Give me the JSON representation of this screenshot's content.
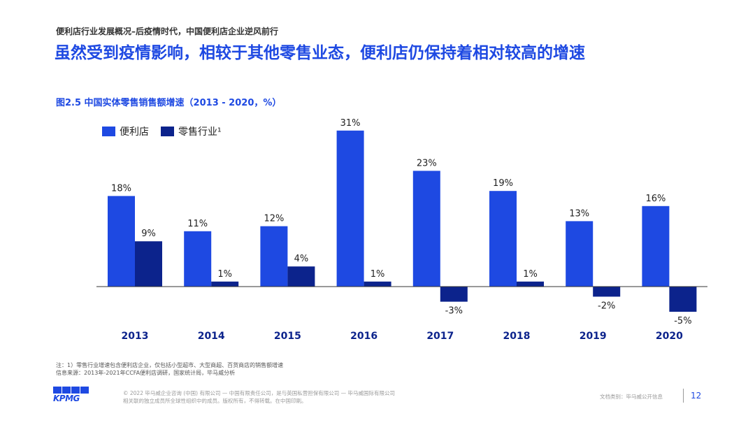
{
  "header": {
    "section_label": "便利店行业发展概况–后疫情时代，中国便利店企业逆风前行",
    "headline": "虽然受到疫情影响，相较于其他零售业态，便利店仍保持着相对较高的增速"
  },
  "chart_title": "图2.5 中国实体零售销售额增速（2013 - 2020，%）",
  "chart_data": {
    "type": "bar",
    "title": "图2.5 中国实体零售销售额增速（2013 - 2020，%）",
    "categories": [
      "2013",
      "2014",
      "2015",
      "2016",
      "2017",
      "2018",
      "2019",
      "2020"
    ],
    "series": [
      {
        "name": "便利店",
        "values": [
          18,
          11,
          12,
          31,
          23,
          19,
          13,
          16
        ],
        "color": "#1e49e2"
      },
      {
        "name": "零售行业¹",
        "values": [
          9,
          1,
          4,
          1,
          -3,
          1,
          -2,
          -5
        ],
        "color": "#0c238c"
      }
    ],
    "data_labels": [
      [
        "18%",
        "11%",
        "12%",
        "31%",
        "23%",
        "19%",
        "13%",
        "16%"
      ],
      [
        "9%",
        "1%",
        "4%",
        "1%",
        "-3%",
        "1%",
        "-2%",
        "-5%"
      ]
    ],
    "unit": "%",
    "legend_position": "top-left",
    "grid": false,
    "xlabel": "",
    "ylabel": "",
    "ylim": [
      -5,
      31
    ]
  },
  "notes": {
    "line1": "注：1）零售行业增速包含便利店企业，仅包括小型超市、大型商超、百货商店的销售额增速",
    "line2": "信息来源：2013年-2021年CCFA便利店调研，国家统计局，毕马威分析"
  },
  "footer": {
    "logo_text": "KPMG",
    "legal_line1": "© 2022 毕马威企业咨询 (中国) 有限公司 — 中国有限责任公司，是与英国私营担保有限公司 — 毕马威国际有限公司",
    "legal_line2": "相关联的独立成员所全球性组织中的成员。版权所有，不得转载。在中国印刷。",
    "doc_class": "文档类别：毕马威公开信息",
    "page_number": "12"
  }
}
